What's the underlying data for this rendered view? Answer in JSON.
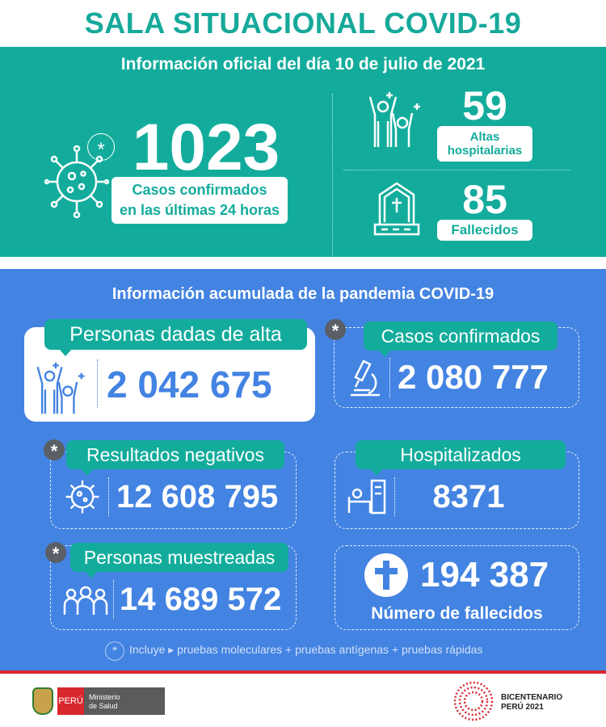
{
  "title": "SALA SITUACIONAL COVID-19",
  "daily": {
    "heading": "Información oficial del día 10 de julio de 2021",
    "cases": "1023",
    "cases_label_1": "Casos confirmados",
    "cases_label_2": "en las últimas 24 horas",
    "asterisk": "*",
    "discharges": "59",
    "discharges_label_1": "Altas",
    "discharges_label_2": "hospitalarias",
    "deaths": "85",
    "deaths_label": "Fallecidos"
  },
  "cumulative": {
    "heading": "Información acumulada de la pandemia COVID-19",
    "discharged": {
      "label": "Personas dadas de alta",
      "value": "2 042 675"
    },
    "confirmed": {
      "label": "Casos confirmados",
      "value": "2 080 777"
    },
    "negative": {
      "label": "Resultados negativos",
      "value": "12 608 795"
    },
    "hospitalized": {
      "label": "Hospitalizados",
      "value": "8371"
    },
    "sampled": {
      "label": "Personas muestreadas",
      "value": "14 689 572"
    },
    "deaths": {
      "label": "Número de fallecidos",
      "value": "194 387"
    },
    "asterisk": "*",
    "footnote": "Incluye ▸ pruebas moleculares +  pruebas antígenas + pruebas rápidas"
  },
  "footer": {
    "peru": "PERÚ",
    "ministry_1": "Ministerio",
    "ministry_2": "de Salud",
    "bicentenario_1": "BICENTENARIO",
    "bicentenario_2": "PERÚ 2021"
  },
  "colors": {
    "teal": "#13ac9c",
    "blue": "#4383e2",
    "red": "#d9272e",
    "white": "#ffffff"
  }
}
